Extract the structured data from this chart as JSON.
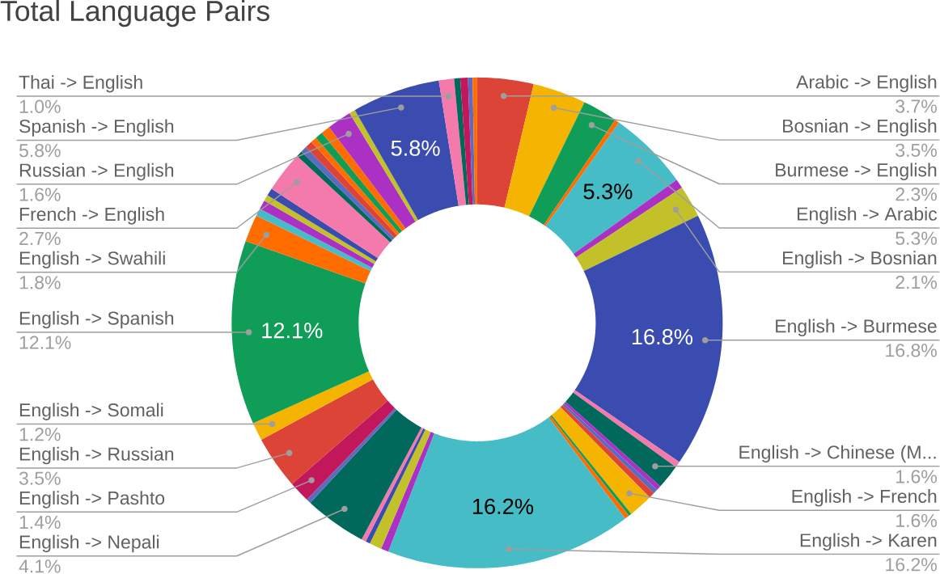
{
  "chart_data": {
    "type": "donut",
    "title": "Total Language Pairs",
    "categories": [
      "Arabic -> English",
      "Bosnian -> English",
      "Burmese -> English",
      null,
      "English -> Arabic",
      null,
      "English -> Bosnian",
      "English -> Burmese",
      null,
      "English -> Chinese (M...",
      null,
      null,
      null,
      "English -> French",
      null,
      null,
      "English -> Karen",
      null,
      null,
      null,
      null,
      "English -> Nepali",
      null,
      "English -> Pashto",
      "English -> Russian",
      "English -> Somali",
      "English -> Spanish",
      "English -> Swahili",
      null,
      null,
      null,
      null,
      "French -> English",
      null,
      null,
      null,
      null,
      null,
      null,
      "Russian -> English",
      null,
      "Spanish -> English",
      "Thai -> English",
      null,
      null,
      null,
      null
    ],
    "values": [
      3.7,
      3.5,
      2.3,
      0.3,
      5.3,
      0.6,
      2.1,
      16.8,
      0.4,
      1.6,
      0.3,
      0.3,
      0.4,
      1.6,
      0.2,
      0.3,
      16.2,
      0.5,
      0.8,
      0.3,
      0.3,
      4.1,
      0.3,
      1.4,
      3.5,
      1.2,
      12.1,
      1.8,
      0.5,
      0.6,
      0.4,
      0.5,
      2.7,
      0.4,
      0.4,
      0.5,
      0.4,
      0.5,
      0.6,
      1.6,
      0.4,
      5.8,
      1.0,
      0.4,
      0.5,
      0.3,
      0.3
    ],
    "value_labels": [
      "3.7%",
      "3.5%",
      "2.3%",
      null,
      "5.3%",
      null,
      "2.1%",
      "16.8%",
      null,
      "1.6%",
      null,
      null,
      null,
      "1.6%",
      null,
      null,
      "16.2%",
      null,
      null,
      null,
      null,
      "4.1%",
      null,
      "1.4%",
      "3.5%",
      "1.2%",
      "12.1%",
      "1.8%",
      null,
      null,
      null,
      null,
      "2.7%",
      null,
      null,
      null,
      null,
      null,
      null,
      "1.6%",
      null,
      "5.8%",
      "1.0%",
      null,
      null,
      null,
      null
    ],
    "colors": [
      "#db4437",
      "#f4b400",
      "#0f9d58",
      "#ff6d00",
      "#46bdc6",
      "#ab30c4",
      "#c2c12a",
      "#3b4cb0",
      "#f37aaa",
      "#00695c",
      "#ab30c4",
      "#5c6bc0",
      "#db4437",
      "#f4b400",
      "#0f9d58",
      "#ff6d00",
      "#46bdc6",
      "#ab30c4",
      "#c2c12a",
      "#3b4cb0",
      "#f37aaa",
      "#00695c",
      "#5c6bc0",
      "#c2185b",
      "#db4437",
      "#f4b400",
      "#0f9d58",
      "#ff6d00",
      "#46bdc6",
      "#ab30c4",
      "#c2c12a",
      "#3b4cb0",
      "#f37aaa",
      "#00695c",
      "#5c6bc0",
      "#db4437",
      "#ff6d00",
      "#0f9d58",
      "#ff6d00",
      "#ab30c4",
      "#c2c12a",
      "#3b4cb0",
      "#f37aaa",
      "#00695c",
      "#c2185b",
      "#5c6bc0",
      "#ff6d00"
    ]
  }
}
